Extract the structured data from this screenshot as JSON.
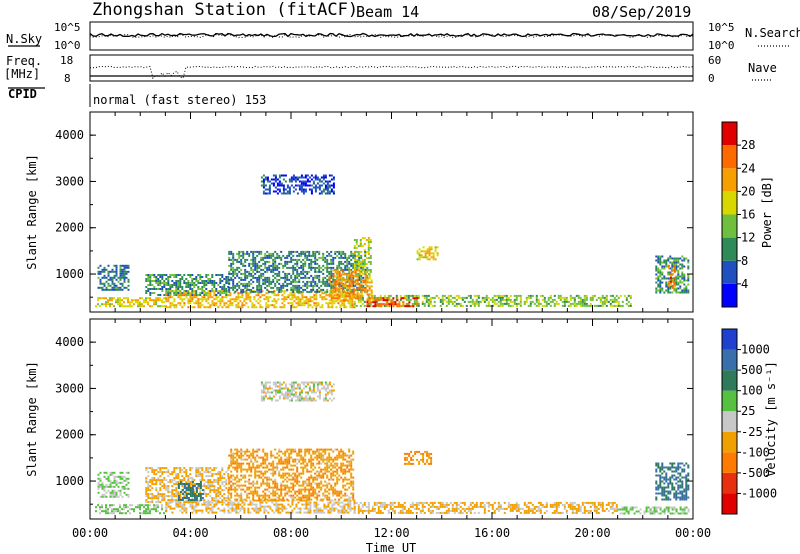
{
  "header": {
    "title": "Zhongshan Station (fitACF)",
    "beam": "Beam 14",
    "date": "08/Sep/2019"
  },
  "noise_panel": {
    "left_label": "N.Sky",
    "left_ticks": [
      "10^5",
      "10^0"
    ],
    "right_label": "N.Search",
    "right_ticks": [
      "10^5",
      "10^0"
    ]
  },
  "freq_panel": {
    "left_label_1": "Freq.",
    "left_label_2": "[MHz]",
    "left_ticks": [
      "18",
      "8"
    ],
    "right_label": "Nave",
    "right_ticks": [
      "60",
      "0"
    ]
  },
  "cpid": {
    "label": "CPID",
    "program": "normal (fast stereo) 153"
  },
  "colors": {
    "power_scale": [
      "#0000ff",
      "#2050c0",
      "#2e8a56",
      "#6fbf3c",
      "#d8d800",
      "#f5a000",
      "#ff6a00",
      "#e00000"
    ],
    "velocity_scale": [
      "#2040d0",
      "#3a6fae",
      "#2e7a5a",
      "#56c040",
      "#c8c8c8",
      "#f0a000",
      "#ff7a00",
      "#e83010",
      "#e00000"
    ]
  },
  "chart_data": [
    {
      "panel": "power",
      "type": "heatmap",
      "xlabel": "Time UT",
      "ylabel": "Slant Range [km]",
      "x_ticks": [
        "00:00",
        "04:00",
        "08:00",
        "12:00",
        "16:00",
        "20:00",
        "00:00"
      ],
      "y_ticks": [
        "1000",
        "2000",
        "3000",
        "4000"
      ],
      "xlim": [
        0,
        24
      ],
      "ylim": [
        180,
        4500
      ],
      "colorbar": {
        "label": "Power [dB]",
        "ticks": [
          "4",
          "8",
          "12",
          "16",
          "20",
          "24",
          "28"
        ],
        "range": [
          0,
          31
        ]
      },
      "regions": [
        {
          "t": [
            0.2,
            3.0
          ],
          "r": [
            300,
            500
          ],
          "v": 18
        },
        {
          "t": [
            3.0,
            10.5
          ],
          "r": [
            280,
            650
          ],
          "v": 20
        },
        {
          "t": [
            10.5,
            21.5
          ],
          "r": [
            300,
            550
          ],
          "v": 14
        },
        {
          "t": [
            11.0,
            13.0
          ],
          "r": [
            300,
            500
          ],
          "v": 26
        },
        {
          "t": [
            0.3,
            1.5
          ],
          "r": [
            650,
            1200
          ],
          "v": 8
        },
        {
          "t": [
            2.2,
            5.5
          ],
          "r": [
            550,
            1000
          ],
          "v": 10
        },
        {
          "t": [
            5.5,
            11.0
          ],
          "r": [
            600,
            1500
          ],
          "v": 9
        },
        {
          "t": [
            9.5,
            11.2
          ],
          "r": [
            450,
            1100
          ],
          "v": 22
        },
        {
          "t": [
            10.5,
            11.2
          ],
          "r": [
            1000,
            1800
          ],
          "v": 16
        },
        {
          "t": [
            13.0,
            13.8
          ],
          "r": [
            1300,
            1600
          ],
          "v": 18
        },
        {
          "t": [
            6.8,
            9.7
          ],
          "r": [
            2750,
            3150
          ],
          "v": 5
        },
        {
          "t": [
            22.5,
            23.8
          ],
          "r": [
            600,
            1400
          ],
          "v": 10
        },
        {
          "t": [
            23.0,
            23.3
          ],
          "r": [
            700,
            1200
          ],
          "v": 24
        }
      ]
    },
    {
      "panel": "velocity",
      "type": "heatmap",
      "xlabel": "Time UT",
      "ylabel": "Slant Range [km]",
      "x_ticks": [
        "00:00",
        "04:00",
        "08:00",
        "12:00",
        "16:00",
        "20:00",
        "00:00"
      ],
      "y_ticks": [
        "1000",
        "2000",
        "3000",
        "4000"
      ],
      "xlim": [
        0,
        24
      ],
      "ylim": [
        180,
        4500
      ],
      "colorbar": {
        "label": "Velocity [m s⁻¹]",
        "ticks": [
          "1000",
          "500",
          "100",
          "25",
          "-25",
          "-100",
          "-500",
          "-1000"
        ],
        "range": [
          -1200,
          1200
        ]
      },
      "regions": [
        {
          "t": [
            0.2,
            3.0
          ],
          "r": [
            300,
            500
          ],
          "v": 200
        },
        {
          "t": [
            3.0,
            10.5
          ],
          "r": [
            300,
            600
          ],
          "v": -150
        },
        {
          "t": [
            10.5,
            21.0
          ],
          "r": [
            300,
            550
          ],
          "v": -200
        },
        {
          "t": [
            21.0,
            23.8
          ],
          "r": [
            300,
            450
          ],
          "v": 150
        },
        {
          "t": [
            0.3,
            1.5
          ],
          "r": [
            650,
            1200
          ],
          "v": 150
        },
        {
          "t": [
            2.2,
            5.5
          ],
          "r": [
            550,
            1300
          ],
          "v": -200
        },
        {
          "t": [
            5.5,
            10.5
          ],
          "r": [
            600,
            1700
          ],
          "v": -300
        },
        {
          "t": [
            3.5,
            4.5
          ],
          "r": [
            600,
            1000
          ],
          "v": 600
        },
        {
          "t": [
            12.5,
            13.6
          ],
          "r": [
            1350,
            1650
          ],
          "v": -400
        },
        {
          "t": [
            6.8,
            9.7
          ],
          "r": [
            2750,
            3150
          ],
          "v": 0
        },
        {
          "t": [
            22.5,
            23.8
          ],
          "r": [
            600,
            1400
          ],
          "v": 700
        }
      ]
    }
  ]
}
